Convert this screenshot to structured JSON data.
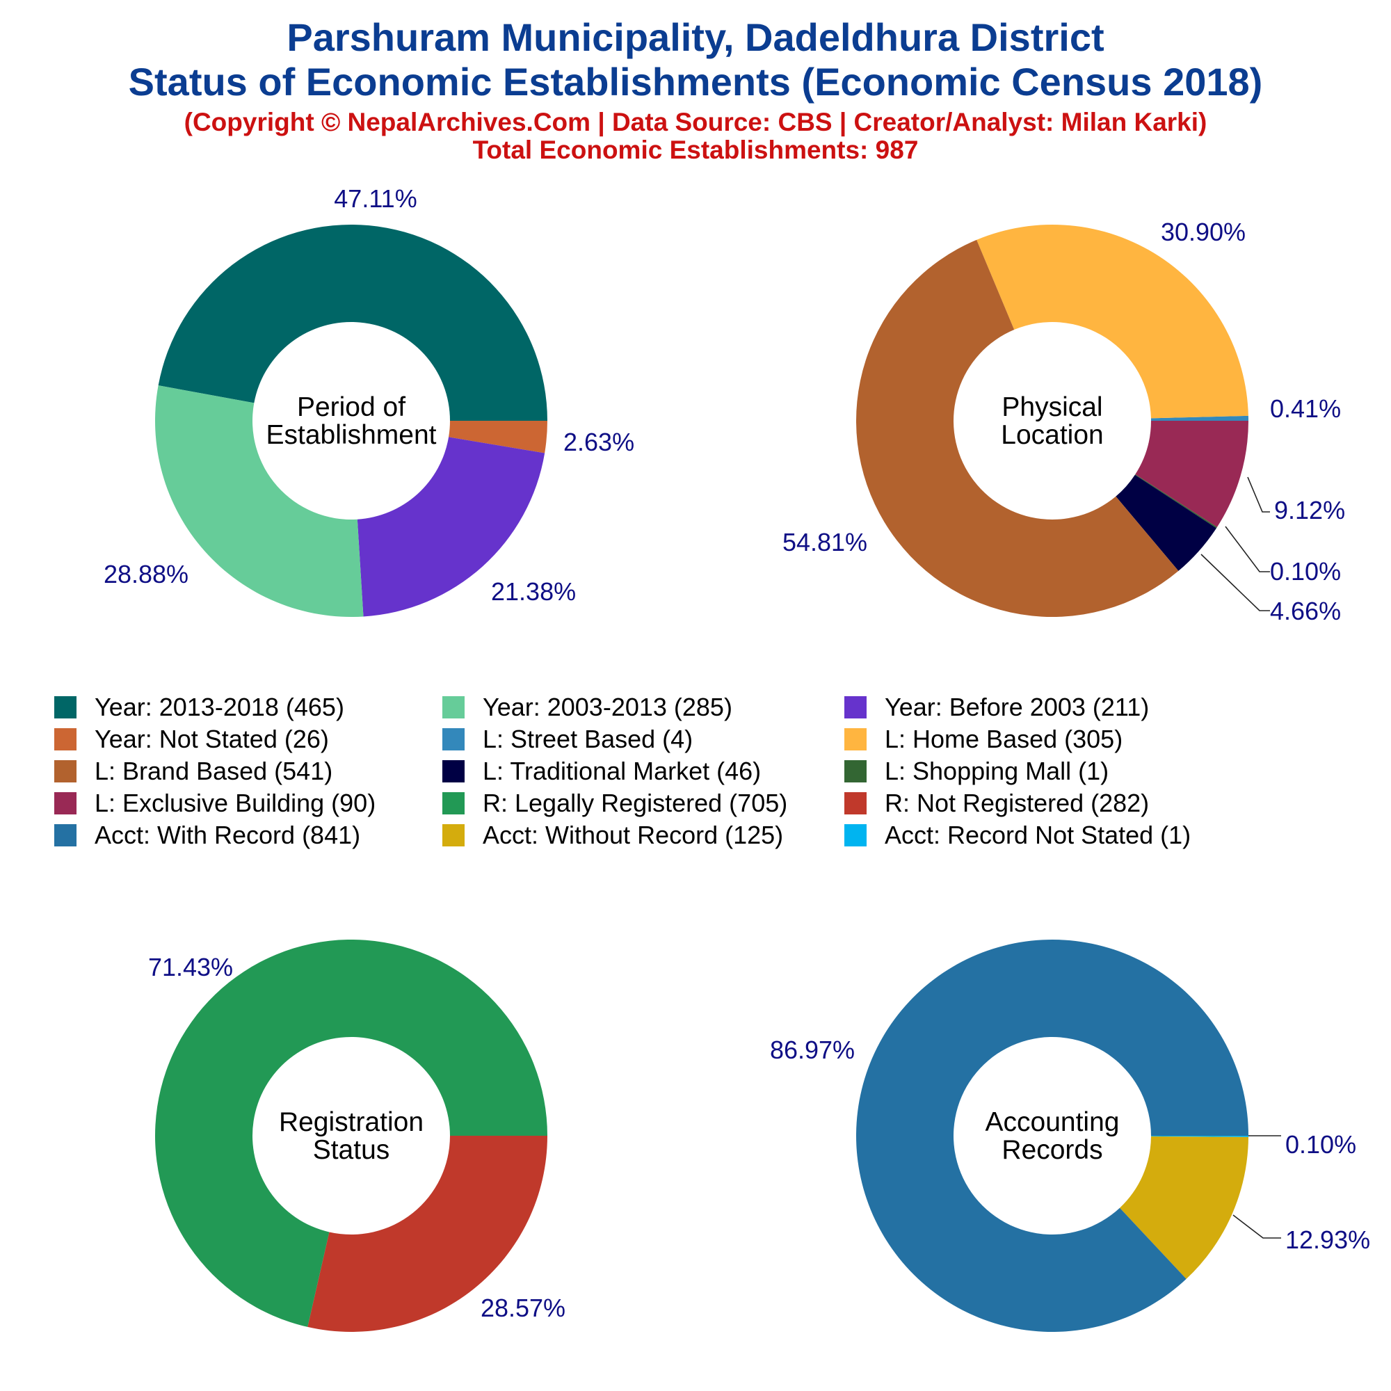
{
  "header": {
    "title_line_1": "Parshuram Municipality, Dadeldhura District",
    "title_line_2": "Status of Economic Establishments (Economic Census 2018)",
    "copyright": "(Copyright © NepalArchives.Com | Data Source: CBS | Creator/Analyst: Milan Karki)",
    "total": "Total Economic Establishments: 987"
  },
  "legend": [
    {
      "label": "Year: 2013-2018 (465)",
      "color": "#006666"
    },
    {
      "label": "Year: 2003-2013 (285)",
      "color": "#66cc99"
    },
    {
      "label": "Year: Before 2003 (211)",
      "color": "#6633cc"
    },
    {
      "label": "Year: Not Stated (26)",
      "color": "#cc6633"
    },
    {
      "label": "L: Street Based (4)",
      "color": "#3388bb"
    },
    {
      "label": "L: Home Based (305)",
      "color": "#ffb540"
    },
    {
      "label": "L: Brand Based (541)",
      "color": "#b2622e"
    },
    {
      "label": "L: Traditional Market (46)",
      "color": "#000044"
    },
    {
      "label": "L: Shopping Mall (1)",
      "color": "#336633"
    },
    {
      "label": "L: Exclusive Building (90)",
      "color": "#992955"
    },
    {
      "label": "R: Legally Registered (705)",
      "color": "#229955"
    },
    {
      "label": "R: Not Registered (282)",
      "color": "#c0392b"
    },
    {
      "label": "Acct: With Record (841)",
      "color": "#2471a3"
    },
    {
      "label": "Acct: Without Record (125)",
      "color": "#d4ac0d"
    },
    {
      "label": "Acct: Record Not Stated (1)",
      "color": "#00b4f0"
    }
  ],
  "chart_data": [
    {
      "type": "pie",
      "center_label": [
        "Period of",
        "Establishment"
      ],
      "slices": [
        {
          "name": "Year: 2013-2018",
          "value": 465,
          "color": "#006666",
          "label": "47.11%"
        },
        {
          "name": "Year: Not Stated",
          "value": 26,
          "color": "#cc6633",
          "label": "2.63%"
        },
        {
          "name": "Year: Before 2003",
          "value": 211,
          "color": "#6633cc",
          "label": "21.38%"
        },
        {
          "name": "Year: 2003-2013",
          "value": 285,
          "color": "#66cc99",
          "label": "28.88%"
        }
      ]
    },
    {
      "type": "pie",
      "center_label": [
        "Physical",
        "Location"
      ],
      "slices": [
        {
          "name": "L: Home Based",
          "value": 305,
          "color": "#ffb540",
          "label": "30.90%"
        },
        {
          "name": "L: Street Based",
          "value": 4,
          "color": "#3388bb",
          "label": "0.41%"
        },
        {
          "name": "L: Exclusive Building",
          "value": 90,
          "color": "#992955",
          "label": "9.12%"
        },
        {
          "name": "L: Shopping Mall",
          "value": 1,
          "color": "#336633",
          "label": "0.10%"
        },
        {
          "name": "L: Traditional Market",
          "value": 46,
          "color": "#000044",
          "label": "4.66%"
        },
        {
          "name": "L: Brand Based",
          "value": 541,
          "color": "#b2622e",
          "label": "54.81%"
        }
      ]
    },
    {
      "type": "pie",
      "center_label": [
        "Registration",
        "Status"
      ],
      "slices": [
        {
          "name": "R: Not Registered",
          "value": 282,
          "color": "#c0392b",
          "label": "28.57%"
        },
        {
          "name": "R: Legally Registered",
          "value": 705,
          "color": "#229955",
          "label": "71.43%"
        }
      ]
    },
    {
      "type": "pie",
      "center_label": [
        "Accounting",
        "Records"
      ],
      "slices": [
        {
          "name": "Acct: Record Not Stated",
          "value": 1,
          "color": "#00b4f0",
          "label": "0.10%"
        },
        {
          "name": "Acct: Without Record",
          "value": 125,
          "color": "#d4ac0d",
          "label": "12.93%"
        },
        {
          "name": "Acct: With Record",
          "value": 841,
          "color": "#2471a3",
          "label": "86.97%"
        }
      ]
    }
  ]
}
